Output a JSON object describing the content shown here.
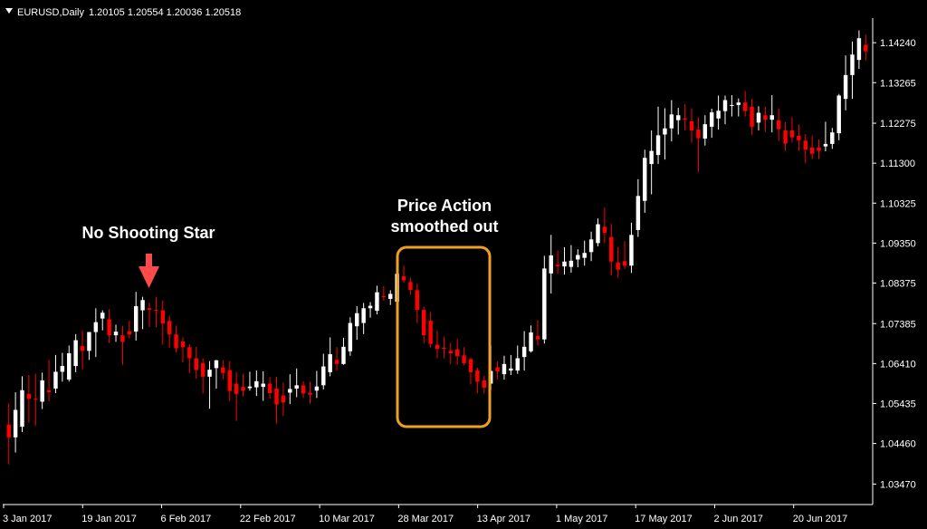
{
  "header": {
    "symbol": "EURUSD,Daily",
    "ohlc": "1.20105 1.20554 1.20036 1.20518"
  },
  "annotations": {
    "left": "No Shooting Star",
    "box_line1": "Price Action",
    "box_line2": "smoothed out"
  },
  "colors": {
    "background": "#000000",
    "bull": "#ffffff",
    "bear": "#ff0000",
    "axis": "#ffffff",
    "arrow": "#ff4a4a",
    "box": "#f0a020"
  },
  "icons": {
    "arrow": "down-arrow-icon",
    "menu": "triangle-down-icon"
  },
  "chart_data": {
    "type": "candlestick",
    "y_ticks": [
      "1.14240",
      "1.13265",
      "1.12275",
      "1.11300",
      "1.10325",
      "1.09350",
      "1.08375",
      "1.07385",
      "1.06410",
      "1.05435",
      "1.04460",
      "1.03470"
    ],
    "x_ticks": [
      "3 Jan 2017",
      "19 Jan 2017",
      "6 Feb 2017",
      "22 Feb 2017",
      "10 Mar 2017",
      "28 Mar 2017",
      "13 Apr 2017",
      "1 May 2017",
      "17 May 2017",
      "2 Jun 2017",
      "20 Jun 2017"
    ],
    "ylim": [
      1.0297,
      1.1484
    ],
    "candles": [
      {
        "o": 1.0492,
        "h": 1.0544,
        "l": 1.0395,
        "c": 1.0461
      },
      {
        "o": 1.0461,
        "h": 1.0571,
        "l": 1.0424,
        "c": 1.0528
      },
      {
        "o": 1.0487,
        "h": 1.061,
        "l": 1.0474,
        "c": 1.0576
      },
      {
        "o": 1.0567,
        "h": 1.0613,
        "l": 1.0497,
        "c": 1.0555
      },
      {
        "o": 1.0555,
        "h": 1.0616,
        "l": 1.049,
        "c": 1.0554
      },
      {
        "o": 1.0548,
        "h": 1.0619,
        "l": 1.053,
        "c": 1.06
      },
      {
        "o": 1.0576,
        "h": 1.065,
        "l": 1.0549,
        "c": 1.0571
      },
      {
        "o": 1.058,
        "h": 1.0662,
        "l": 1.0569,
        "c": 1.0621
      },
      {
        "o": 1.0621,
        "h": 1.0667,
        "l": 1.0597,
        "c": 1.0635
      },
      {
        "o": 1.0602,
        "h": 1.0685,
        "l": 1.0597,
        "c": 1.0666
      },
      {
        "o": 1.0635,
        "h": 1.0713,
        "l": 1.062,
        "c": 1.0698
      },
      {
        "o": 1.0684,
        "h": 1.0721,
        "l": 1.0627,
        "c": 1.0672
      },
      {
        "o": 1.0672,
        "h": 1.0718,
        "l": 1.065,
        "c": 1.0718
      },
      {
        "o": 1.0718,
        "h": 1.0776,
        "l": 1.0657,
        "c": 1.0742
      },
      {
        "o": 1.0751,
        "h": 1.0771,
        "l": 1.0722,
        "c": 1.0765
      },
      {
        "o": 1.0749,
        "h": 1.0774,
        "l": 1.0691,
        "c": 1.071
      },
      {
        "o": 1.071,
        "h": 1.0736,
        "l": 1.0694,
        "c": 1.0719
      },
      {
        "o": 1.071,
        "h": 1.0733,
        "l": 1.0638,
        "c": 1.0694
      },
      {
        "o": 1.072,
        "h": 1.0746,
        "l": 1.0703,
        "c": 1.0712
      },
      {
        "o": 1.0719,
        "h": 1.0816,
        "l": 1.0697,
        "c": 1.0781
      },
      {
        "o": 1.0771,
        "h": 1.0804,
        "l": 1.0725,
        "c": 1.0796
      },
      {
        "o": 1.0776,
        "h": 1.0789,
        "l": 1.073,
        "c": 1.0772
      },
      {
        "o": 1.0772,
        "h": 1.0804,
        "l": 1.073,
        "c": 1.0771
      },
      {
        "o": 1.0771,
        "h": 1.0795,
        "l": 1.0687,
        "c": 1.0739
      },
      {
        "o": 1.0745,
        "h": 1.0758,
        "l": 1.068,
        "c": 1.0712
      },
      {
        "o": 1.0712,
        "h": 1.0734,
        "l": 1.0668,
        "c": 1.0678
      },
      {
        "o": 1.0695,
        "h": 1.0705,
        "l": 1.0644,
        "c": 1.0681
      },
      {
        "o": 1.0681,
        "h": 1.0688,
        "l": 1.0618,
        "c": 1.0654
      },
      {
        "o": 1.0654,
        "h": 1.0682,
        "l": 1.0604,
        "c": 1.0625
      },
      {
        "o": 1.0642,
        "h": 1.0654,
        "l": 1.0568,
        "c": 1.0609
      },
      {
        "o": 1.0609,
        "h": 1.0647,
        "l": 1.0531,
        "c": 1.0626
      },
      {
        "o": 1.063,
        "h": 1.065,
        "l": 1.058,
        "c": 1.0649
      },
      {
        "o": 1.0632,
        "h": 1.0649,
        "l": 1.0602,
        "c": 1.0618
      },
      {
        "o": 1.0625,
        "h": 1.0647,
        "l": 1.0549,
        "c": 1.0574
      },
      {
        "o": 1.0592,
        "h": 1.062,
        "l": 1.0501,
        "c": 1.0567
      },
      {
        "o": 1.0584,
        "h": 1.0616,
        "l": 1.0561,
        "c": 1.0575
      },
      {
        "o": 1.0581,
        "h": 1.0621,
        "l": 1.0575,
        "c": 1.0585
      },
      {
        "o": 1.0583,
        "h": 1.0624,
        "l": 1.0562,
        "c": 1.0598
      },
      {
        "o": 1.0584,
        "h": 1.0622,
        "l": 1.055,
        "c": 1.0592
      },
      {
        "o": 1.0592,
        "h": 1.0608,
        "l": 1.0555,
        "c": 1.0569
      },
      {
        "o": 1.058,
        "h": 1.0609,
        "l": 1.0495,
        "c": 1.0541
      },
      {
        "o": 1.0563,
        "h": 1.0595,
        "l": 1.0513,
        "c": 1.0546
      },
      {
        "o": 1.057,
        "h": 1.0615,
        "l": 1.0542,
        "c": 1.0579
      },
      {
        "o": 1.058,
        "h": 1.0629,
        "l": 1.0559,
        "c": 1.0588
      },
      {
        "o": 1.0588,
        "h": 1.0598,
        "l": 1.0557,
        "c": 1.0568
      },
      {
        "o": 1.057,
        "h": 1.0597,
        "l": 1.0543,
        "c": 1.0565
      },
      {
        "o": 1.0575,
        "h": 1.0623,
        "l": 1.0557,
        "c": 1.0585
      },
      {
        "o": 1.0588,
        "h": 1.0665,
        "l": 1.0578,
        "c": 1.0634
      },
      {
        "o": 1.062,
        "h": 1.0705,
        "l": 1.061,
        "c": 1.0664
      },
      {
        "o": 1.065,
        "h": 1.0681,
        "l": 1.0624,
        "c": 1.064
      },
      {
        "o": 1.064,
        "h": 1.0704,
        "l": 1.0638,
        "c": 1.0682
      },
      {
        "o": 1.0671,
        "h": 1.0754,
        "l": 1.066,
        "c": 1.074
      },
      {
        "o": 1.0732,
        "h": 1.0781,
        "l": 1.0699,
        "c": 1.0764
      },
      {
        "o": 1.074,
        "h": 1.0789,
        "l": 1.0713,
        "c": 1.0776
      },
      {
        "o": 1.0776,
        "h": 1.0791,
        "l": 1.0753,
        "c": 1.0782
      },
      {
        "o": 1.077,
        "h": 1.0831,
        "l": 1.0761,
        "c": 1.0815
      },
      {
        "o": 1.0806,
        "h": 1.083,
        "l": 1.0794,
        "c": 1.0803
      },
      {
        "o": 1.0799,
        "h": 1.082,
        "l": 1.0784,
        "c": 1.0811
      },
      {
        "o": 1.0792,
        "h": 1.0905,
        "l": 1.078,
        "c": 1.086
      },
      {
        "o": 1.0854,
        "h": 1.088,
        "l": 1.0838,
        "c": 1.0844
      },
      {
        "o": 1.084,
        "h": 1.0851,
        "l": 1.0809,
        "c": 1.0821
      },
      {
        "o": 1.082,
        "h": 1.0836,
        "l": 1.074,
        "c": 1.0772
      },
      {
        "o": 1.0772,
        "h": 1.078,
        "l": 1.069,
        "c": 1.071
      },
      {
        "o": 1.0746,
        "h": 1.0767,
        "l": 1.068,
        "c": 1.0689
      },
      {
        "o": 1.0687,
        "h": 1.0721,
        "l": 1.0654,
        "c": 1.0677
      },
      {
        "o": 1.068,
        "h": 1.0707,
        "l": 1.0654,
        "c": 1.0677
      },
      {
        "o": 1.0672,
        "h": 1.0692,
        "l": 1.064,
        "c": 1.0666
      },
      {
        "o": 1.0676,
        "h": 1.0701,
        "l": 1.0638,
        "c": 1.0659
      },
      {
        "o": 1.0661,
        "h": 1.0681,
        "l": 1.0637,
        "c": 1.0642
      },
      {
        "o": 1.0652,
        "h": 1.0656,
        "l": 1.059,
        "c": 1.062
      },
      {
        "o": 1.0624,
        "h": 1.0631,
        "l": 1.0568,
        "c": 1.0597
      },
      {
        "o": 1.06,
        "h": 1.0611,
        "l": 1.0568,
        "c": 1.0582
      },
      {
        "o": 1.0592,
        "h": 1.0685,
        "l": 1.0577,
        "c": 1.0623
      },
      {
        "o": 1.0632,
        "h": 1.0646,
        "l": 1.0602,
        "c": 1.0622
      },
      {
        "o": 1.0615,
        "h": 1.066,
        "l": 1.0602,
        "c": 1.064
      },
      {
        "o": 1.0624,
        "h": 1.0662,
        "l": 1.0613,
        "c": 1.0629
      },
      {
        "o": 1.0624,
        "h": 1.0685,
        "l": 1.0616,
        "c": 1.0654
      },
      {
        "o": 1.0657,
        "h": 1.072,
        "l": 1.0624,
        "c": 1.0682
      },
      {
        "o": 1.0671,
        "h": 1.0734,
        "l": 1.0668,
        "c": 1.0717
      },
      {
        "o": 1.0708,
        "h": 1.0747,
        "l": 1.0685,
        "c": 1.07
      },
      {
        "o": 1.07,
        "h": 1.0904,
        "l": 1.069,
        "c": 1.0873
      },
      {
        "o": 1.0861,
        "h": 1.0955,
        "l": 1.0812,
        "c": 1.0905
      },
      {
        "o": 1.0882,
        "h": 1.0917,
        "l": 1.086,
        "c": 1.0878
      },
      {
        "o": 1.0878,
        "h": 1.0925,
        "l": 1.0858,
        "c": 1.089
      },
      {
        "o": 1.0877,
        "h": 1.093,
        "l": 1.0863,
        "c": 1.0892
      },
      {
        "o": 1.0895,
        "h": 1.092,
        "l": 1.0876,
        "c": 1.0906
      },
      {
        "o": 1.0899,
        "h": 1.0941,
        "l": 1.088,
        "c": 1.0911
      },
      {
        "o": 1.0913,
        "h": 1.0963,
        "l": 1.0891,
        "c": 1.0944
      },
      {
        "o": 1.0935,
        "h": 1.0995,
        "l": 1.0927,
        "c": 1.0981
      },
      {
        "o": 1.0975,
        "h": 1.1022,
        "l": 1.0935,
        "c": 1.096
      },
      {
        "o": 1.095,
        "h": 1.0982,
        "l": 1.0856,
        "c": 1.089
      },
      {
        "o": 1.0888,
        "h": 1.0925,
        "l": 1.085,
        "c": 1.087
      },
      {
        "o": 1.0891,
        "h": 1.094,
        "l": 1.0872,
        "c": 1.088
      },
      {
        "o": 1.088,
        "h": 1.0985,
        "l": 1.0862,
        "c": 1.0955
      },
      {
        "o": 1.0967,
        "h": 1.1091,
        "l": 1.095,
        "c": 1.105
      },
      {
        "o": 1.1038,
        "h": 1.1163,
        "l": 1.1009,
        "c": 1.1143
      },
      {
        "o": 1.1128,
        "h": 1.121,
        "l": 1.1054,
        "c": 1.116
      },
      {
        "o": 1.115,
        "h": 1.1268,
        "l": 1.1128,
        "c": 1.1198
      },
      {
        "o": 1.12,
        "h": 1.1264,
        "l": 1.1139,
        "c": 1.1215
      },
      {
        "o": 1.1215,
        "h": 1.1284,
        "l": 1.1183,
        "c": 1.1249
      },
      {
        "o": 1.1235,
        "h": 1.1265,
        "l": 1.12,
        "c": 1.1247
      },
      {
        "o": 1.1239,
        "h": 1.1274,
        "l": 1.121,
        "c": 1.1236
      },
      {
        "o": 1.1232,
        "h": 1.1264,
        "l": 1.118,
        "c": 1.121
      },
      {
        "o": 1.1212,
        "h": 1.1242,
        "l": 1.1109,
        "c": 1.1191
      },
      {
        "o": 1.119,
        "h": 1.1247,
        "l": 1.1173,
        "c": 1.1225
      },
      {
        "o": 1.1219,
        "h": 1.1263,
        "l": 1.1192,
        "c": 1.1254
      },
      {
        "o": 1.1239,
        "h": 1.1295,
        "l": 1.1212,
        "c": 1.1258
      },
      {
        "o": 1.1257,
        "h": 1.1295,
        "l": 1.1225,
        "c": 1.1284
      },
      {
        "o": 1.1272,
        "h": 1.1296,
        "l": 1.1244,
        "c": 1.1272
      },
      {
        "o": 1.1272,
        "h": 1.1288,
        "l": 1.1244,
        "c": 1.1278
      },
      {
        "o": 1.1278,
        "h": 1.1306,
        "l": 1.1244,
        "c": 1.1257
      },
      {
        "o": 1.1268,
        "h": 1.1287,
        "l": 1.1199,
        "c": 1.1219
      },
      {
        "o": 1.1229,
        "h": 1.1269,
        "l": 1.121,
        "c": 1.1253
      },
      {
        "o": 1.1247,
        "h": 1.1268,
        "l": 1.1206,
        "c": 1.1236
      },
      {
        "o": 1.1236,
        "h": 1.1296,
        "l": 1.1205,
        "c": 1.1247
      },
      {
        "o": 1.1235,
        "h": 1.1264,
        "l": 1.1184,
        "c": 1.1213
      },
      {
        "o": 1.121,
        "h": 1.123,
        "l": 1.116,
        "c": 1.1178
      },
      {
        "o": 1.121,
        "h": 1.1242,
        "l": 1.118,
        "c": 1.1193
      },
      {
        "o": 1.1197,
        "h": 1.1225,
        "l": 1.116,
        "c": 1.1186
      },
      {
        "o": 1.1185,
        "h": 1.1201,
        "l": 1.113,
        "c": 1.1163
      },
      {
        "o": 1.1168,
        "h": 1.1197,
        "l": 1.114,
        "c": 1.1153
      },
      {
        "o": 1.1168,
        "h": 1.1188,
        "l": 1.114,
        "c": 1.116
      },
      {
        "o": 1.1171,
        "h": 1.1231,
        "l": 1.1159,
        "c": 1.1177
      },
      {
        "o": 1.1177,
        "h": 1.1216,
        "l": 1.1165,
        "c": 1.1205
      },
      {
        "o": 1.1203,
        "h": 1.1299,
        "l": 1.1186,
        "c": 1.1295
      },
      {
        "o": 1.1287,
        "h": 1.1393,
        "l": 1.1259,
        "c": 1.1345
      },
      {
        "o": 1.1345,
        "h": 1.1427,
        "l": 1.1287,
        "c": 1.1395
      },
      {
        "o": 1.1382,
        "h": 1.1454,
        "l": 1.136,
        "c": 1.1435
      },
      {
        "o": 1.1419,
        "h": 1.1443,
        "l": 1.138,
        "c": 1.1403
      }
    ]
  }
}
